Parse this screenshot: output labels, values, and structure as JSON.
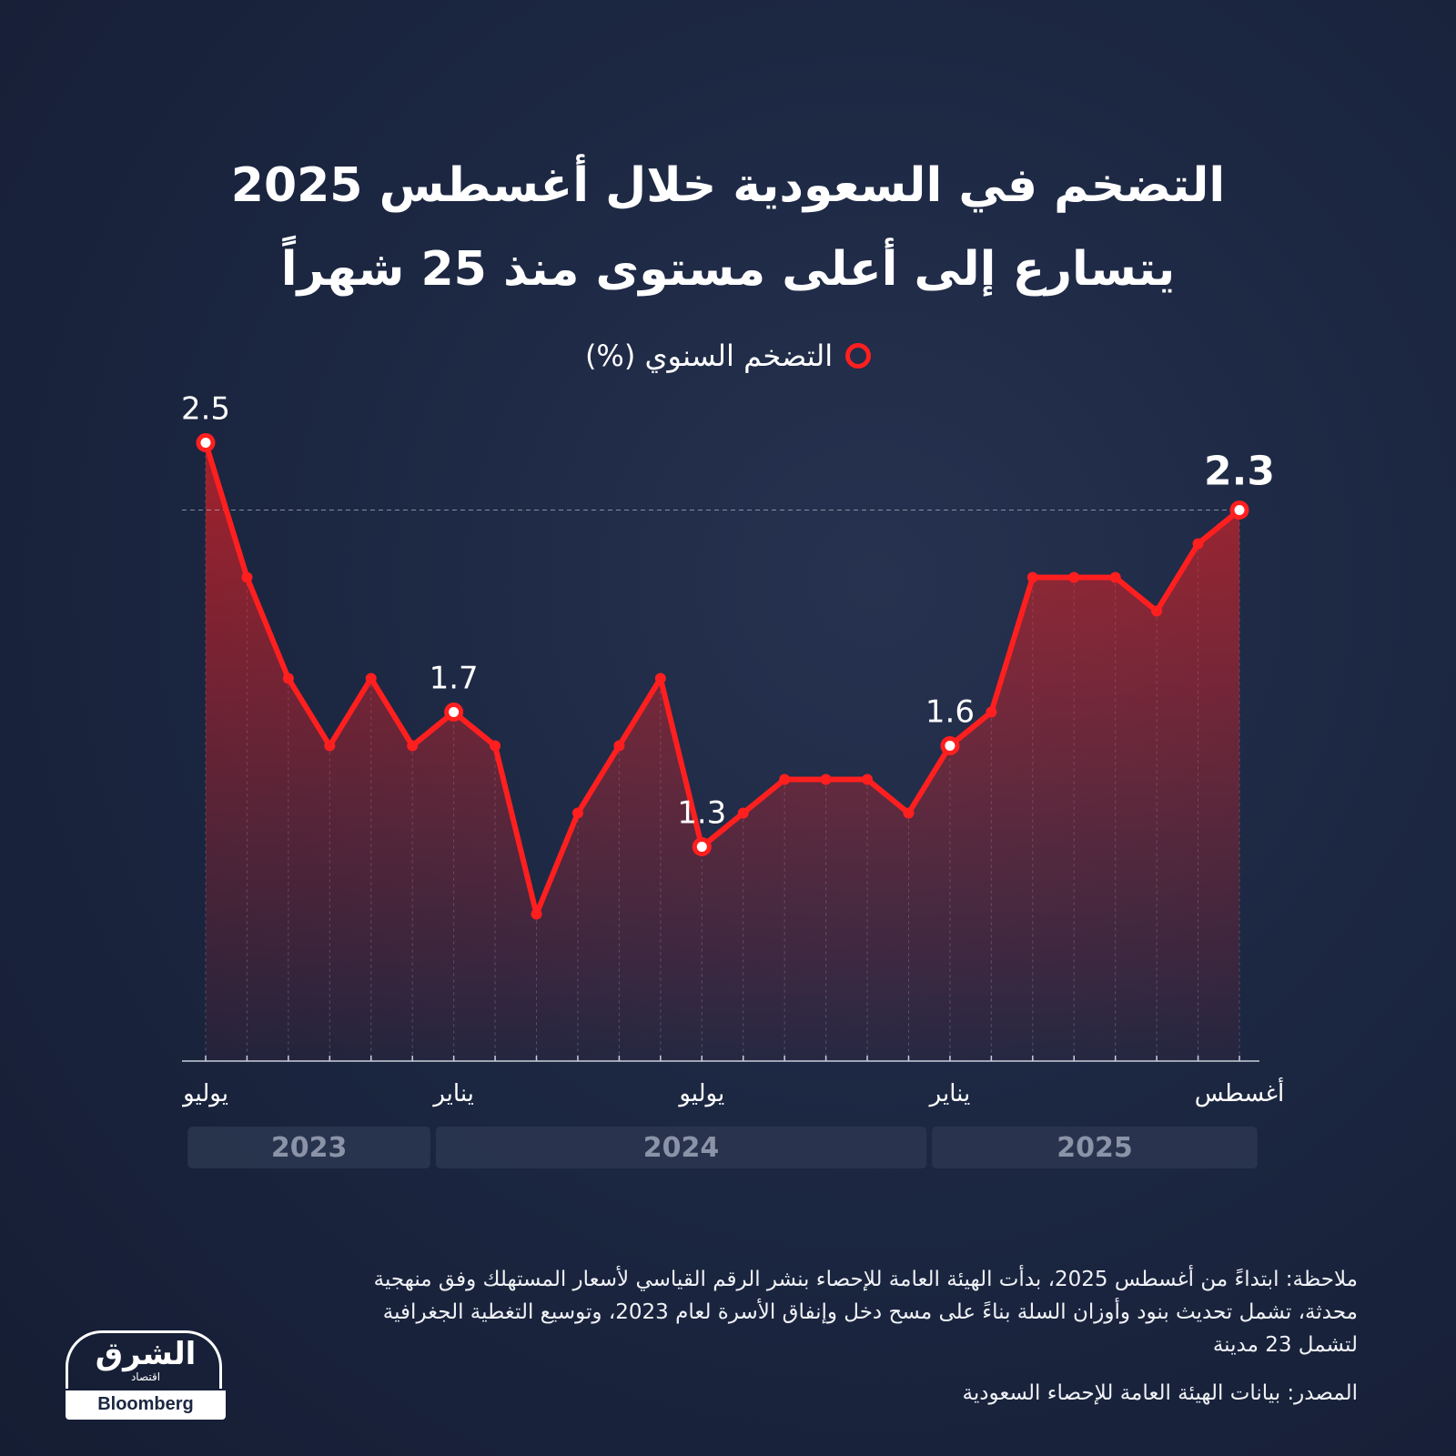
{
  "title": {
    "line1": "التضخم في السعودية خلال أغسطس 2025",
    "line2": "يتسارع إلى أعلى مستوى منذ 25 شهراً"
  },
  "legend": {
    "label": "التضخم السنوي (%)"
  },
  "colors": {
    "accent": "#ff1f1f",
    "background": "#1c2742",
    "year_band": "#2c3650"
  },
  "chart_data": {
    "type": "line",
    "series": [
      {
        "name": "التضخم السنوي (%)",
        "values": [
          2.5,
          2.1,
          1.8,
          1.6,
          1.8,
          1.6,
          1.7,
          1.6,
          1.1,
          1.4,
          1.6,
          1.8,
          1.3,
          1.4,
          1.5,
          1.5,
          1.5,
          1.4,
          1.6,
          1.7,
          2.1,
          2.1,
          2.1,
          2.0,
          2.2,
          2.3
        ]
      }
    ],
    "x_tick_labels": [
      {
        "index": 0,
        "label": "يوليو"
      },
      {
        "index": 6,
        "label": "يناير"
      },
      {
        "index": 12,
        "label": "يوليو"
      },
      {
        "index": 18,
        "label": "يناير"
      },
      {
        "index": 25,
        "label": "أغسطس"
      }
    ],
    "years": [
      {
        "label": "2023",
        "from": 0,
        "to": 5
      },
      {
        "label": "2024",
        "from": 6,
        "to": 17
      },
      {
        "label": "2025",
        "from": 18,
        "to": 25
      }
    ],
    "data_labels": [
      {
        "index": 0,
        "text": "2.5"
      },
      {
        "index": 6,
        "text": "1.7"
      },
      {
        "index": 12,
        "text": "1.3"
      },
      {
        "index": 18,
        "text": "1.6"
      },
      {
        "index": 25,
        "text": "2.3"
      }
    ],
    "highlight_index": 25,
    "ylim": [
      0.75,
      2.55
    ],
    "reference_line": 2.3
  },
  "note": "ملاحظة: ابتداءً من أغسطس 2025، بدأت الهيئة العامة للإحصاء بنشر الرقم القياسي لأسعار المستهلك وفق منهجية محدثة، تشمل تحديث بنود وأوزان السلة بناءً على مسح دخل وإنفاق الأسرة لعام 2023، وتوسيع التغطية الجغرافية لتشمل 23 مدينة",
  "source": "المصدر: بيانات الهيئة العامة للإحصاء السعودية",
  "logo": {
    "brand": "الشرق",
    "sub": "اقتصاد",
    "partner": "Bloomberg"
  }
}
